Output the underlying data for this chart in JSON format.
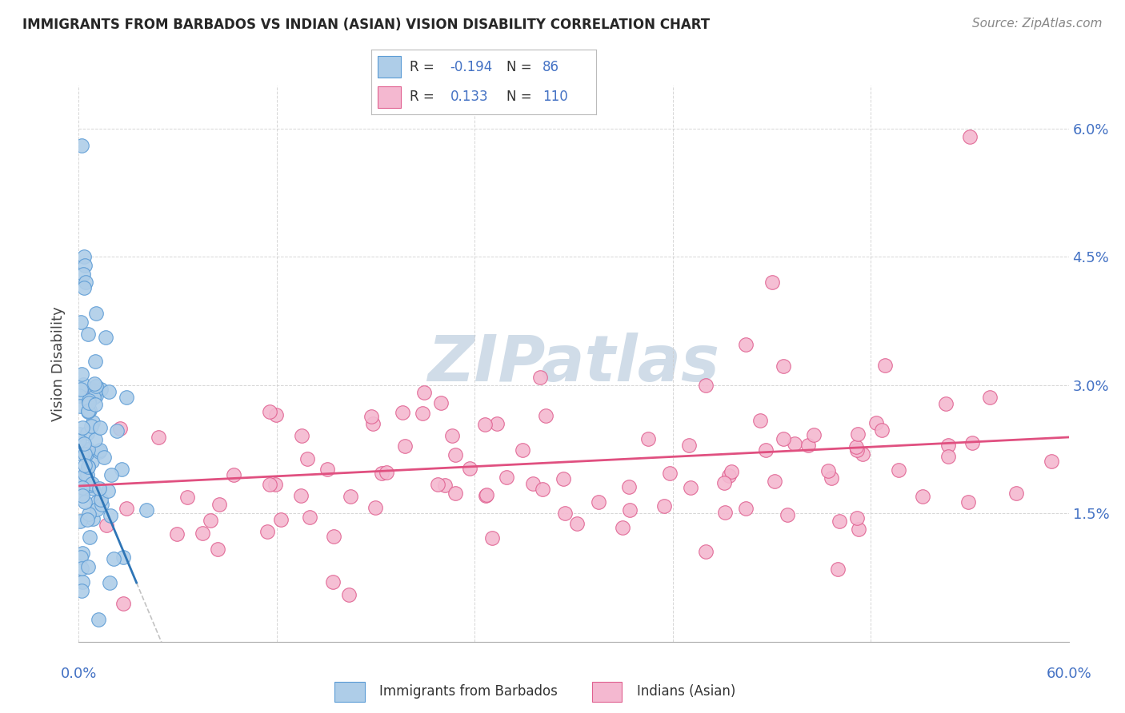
{
  "title": "IMMIGRANTS FROM BARBADOS VS INDIAN (ASIAN) VISION DISABILITY CORRELATION CHART",
  "source": "Source: ZipAtlas.com",
  "ylabel": "Vision Disability",
  "xlim": [
    0,
    60
  ],
  "ylim": [
    0,
    6.5
  ],
  "yticks": [
    0,
    1.5,
    3.0,
    4.5,
    6.0
  ],
  "blue_color": "#aecde8",
  "blue_edge_color": "#5b9bd5",
  "blue_line_color": "#2e75b6",
  "pink_color": "#f4b8d0",
  "pink_edge_color": "#e06090",
  "pink_line_color": "#e05080",
  "watermark_color": "#d0dce8",
  "grid_color": "#cccccc",
  "right_axis_color": "#4472c4",
  "title_color": "#262626",
  "source_color": "#888888",
  "ylabel_color": "#444444"
}
